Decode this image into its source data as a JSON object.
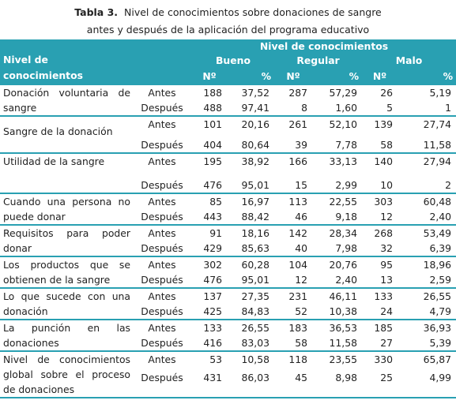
{
  "caption": {
    "label": "Tabla 3.",
    "line1": "Nivel de conocimientos sobre donaciones de sangre",
    "line2": "antes y después de la aplicación del programa educativo"
  },
  "header": {
    "nivel": "Nivel de conocimientos",
    "group_title": "Nivel de conocimientos",
    "bueno": "Bueno",
    "regular": "Regular",
    "malo": "Malo",
    "n_label": "Nº",
    "pct_label": "%"
  },
  "rows": [
    {
      "label": "Donación voluntaria de sangre",
      "antes": {
        "when": "Antes",
        "bn": "188",
        "bp": "37,52",
        "rn": "287",
        "rp": "57,29",
        "mn": "26",
        "mp": "5,19"
      },
      "despues": {
        "when": "Después",
        "bn": "488",
        "bp": "97,41",
        "rn": "8",
        "rp": "1,60",
        "mn": "5",
        "mp": "1"
      }
    },
    {
      "label": "Sangre de la donación",
      "antes": {
        "when": "Antes",
        "bn": "101",
        "bp": "20,16",
        "rn": "261",
        "rp": "52,10",
        "mn": "139",
        "mp": "27,74"
      },
      "despues": {
        "when": "Después",
        "bn": "404",
        "bp": "80,64",
        "rn": "39",
        "rp": "7,78",
        "mn": "58",
        "mp": "11,58"
      }
    },
    {
      "label": "Utilidad de la sangre",
      "antes": {
        "when": "Antes",
        "bn": "195",
        "bp": "38,92",
        "rn": "166",
        "rp": "33,13",
        "mn": "140",
        "mp": "27,94"
      },
      "despues": {
        "when": "Después",
        "bn": "476",
        "bp": "95,01",
        "rn": "15",
        "rp": "2,99",
        "mn": "10",
        "mp": "2"
      }
    },
    {
      "label": "Cuando una persona no puede donar",
      "antes": {
        "when": "Antes",
        "bn": "85",
        "bp": "16,97",
        "rn": "113",
        "rp": "22,55",
        "mn": "303",
        "mp": "60,48"
      },
      "despues": {
        "when": "Después",
        "bn": "443",
        "bp": "88,42",
        "rn": "46",
        "rp": "9,18",
        "mn": "12",
        "mp": "2,40"
      }
    },
    {
      "label": "Requisitos para poder donar",
      "antes": {
        "when": "Antes",
        "bn": "91",
        "bp": "18,16",
        "rn": "142",
        "rp": "28,34",
        "mn": "268",
        "mp": "53,49"
      },
      "despues": {
        "when": "Después",
        "bn": "429",
        "bp": "85,63",
        "rn": "40",
        "rp": "7,98",
        "mn": "32",
        "mp": "6,39"
      }
    },
    {
      "label": "Los productos que se obtienen de la sangre",
      "antes": {
        "when": "Antes",
        "bn": "302",
        "bp": "60,28",
        "rn": "104",
        "rp": "20,76",
        "mn": "95",
        "mp": "18,96"
      },
      "despues": {
        "when": "Después",
        "bn": "476",
        "bp": "95,01",
        "rn": "12",
        "rp": "2,40",
        "mn": "13",
        "mp": "2,59"
      }
    },
    {
      "label": "Lo que sucede con una donación",
      "antes": {
        "when": "Antes",
        "bn": "137",
        "bp": "27,35",
        "rn": "231",
        "rp": "46,11",
        "mn": "133",
        "mp": "26,55"
      },
      "despues": {
        "when": "Después",
        "bn": "425",
        "bp": "84,83",
        "rn": "52",
        "rp": "10,38",
        "mn": "24",
        "mp": "4,79"
      }
    },
    {
      "label": "La punción en las donaciones",
      "antes": {
        "when": "Antes",
        "bn": "133",
        "bp": "26,55",
        "rn": "183",
        "rp": "36,53",
        "mn": "185",
        "mp": "36,93"
      },
      "despues": {
        "when": "Después",
        "bn": "416",
        "bp": "83,03",
        "rn": "58",
        "rp": "11,58",
        "mn": "27",
        "mp": "5,39"
      }
    },
    {
      "label": "Nivel de conocimientos global sobre el proceso de donaciones",
      "antes": {
        "when": "Antes",
        "bn": "53",
        "bp": "10,58",
        "rn": "118",
        "rp": "23,55",
        "mn": "330",
        "mp": "65,87"
      },
      "despues": {
        "when": "Después",
        "bn": "431",
        "bp": "86,03",
        "rn": "45",
        "rp": "8,98",
        "mn": "25",
        "mp": "4,99"
      }
    }
  ],
  "colors": {
    "header_bg": "#29a0b2",
    "header_text": "#ffffff",
    "rule": "#29a0b2"
  }
}
